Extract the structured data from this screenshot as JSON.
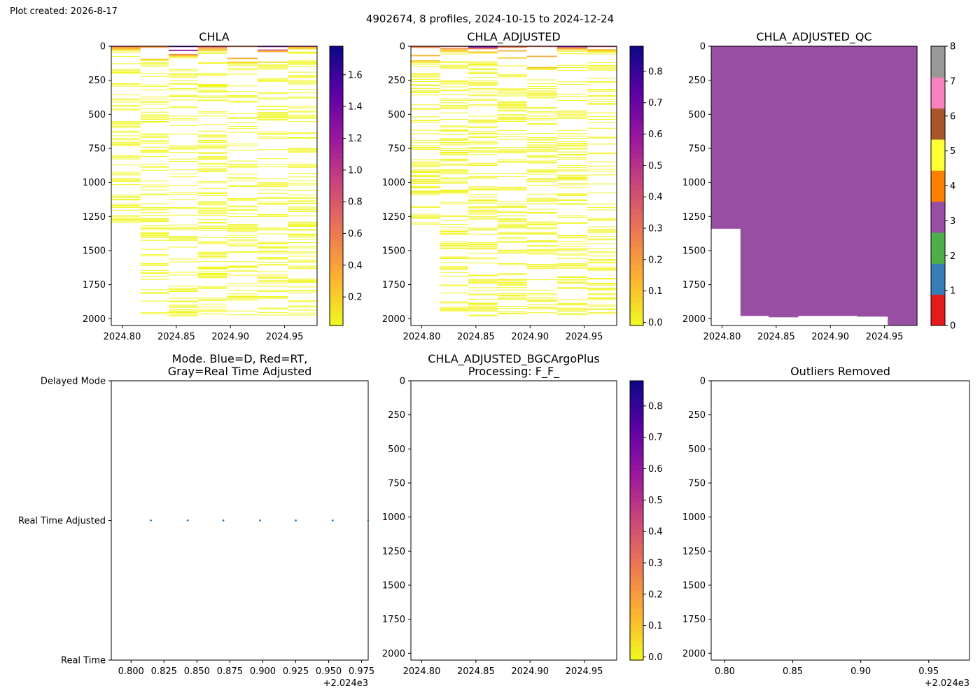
{
  "figure": {
    "created": "Plot created: 2026-8-17",
    "suptitle": "4902674, 8 profiles, 2024-10-15 to 2024-12-24"
  },
  "colors": {
    "trace_cmap": [
      "#f0f921",
      "#fdb42f",
      "#ed7953",
      "#cc4778",
      "#9c179e",
      "#5c01a6",
      "#0d0887"
    ],
    "qc_flags": [
      "#e41a1c",
      "#377eb8",
      "#4daf4a",
      "#984ea3",
      "#ff7f00",
      "#ffff33",
      "#a65628",
      "#f781bf",
      "#999999"
    ],
    "mode_point": "#1f77b4"
  },
  "chart_data": [
    {
      "id": "chla",
      "type": "heatmap",
      "title": "CHLA",
      "x": [
        2024.79,
        2024.817,
        2024.843,
        2024.87,
        2024.897,
        2024.925,
        2024.953,
        2024.98
      ],
      "xlim": [
        2024.79,
        2024.98
      ],
      "xticks": [
        "2024.80",
        "2024.85",
        "2024.90",
        "2024.95"
      ],
      "ylim": [
        2050,
        0
      ],
      "yticks": [
        "0",
        "250",
        "500",
        "750",
        "1000",
        "1250",
        "1500",
        "1750",
        "2000"
      ],
      "colorbar": {
        "range": [
          0.02,
          1.78
        ],
        "ticks": [
          "0.2",
          "0.4",
          "0.6",
          "0.8",
          "1.0",
          "1.2",
          "1.4",
          "1.6"
        ]
      },
      "profile_bottom_depth": [
        1340,
        1990,
        1990,
        1980,
        1980,
        1985,
        1985
      ],
      "surface_values": [
        [
          0.7,
          0.5,
          0.3,
          0.2
        ],
        [
          0.7,
          0.45,
          0.2,
          0.1
        ],
        [
          1.6,
          1.2,
          0.55,
          0.25
        ],
        [
          0.9,
          0.55,
          0.3,
          0.15
        ],
        [
          0.6,
          0.35,
          0.2,
          0.1
        ],
        [
          1.35,
          0.8,
          0.35,
          0.15
        ],
        [
          0.85,
          0.3,
          0.15,
          0.05
        ]
      ],
      "deep_value": 0.03
    },
    {
      "id": "chla_adjusted",
      "type": "heatmap",
      "title": "CHLA_ADJUSTED",
      "x": [
        2024.79,
        2024.817,
        2024.843,
        2024.87,
        2024.897,
        2024.925,
        2024.953,
        2024.98
      ],
      "xlim": [
        2024.79,
        2024.98
      ],
      "xticks": [
        "2024.80",
        "2024.85",
        "2024.90",
        "2024.95"
      ],
      "ylim": [
        2050,
        0
      ],
      "yticks": [
        "0",
        "250",
        "500",
        "750",
        "1000",
        "1250",
        "1500",
        "1750",
        "2000"
      ],
      "colorbar": {
        "range": [
          -0.01,
          0.88
        ],
        "ticks": [
          "0.0",
          "0.1",
          "0.2",
          "0.3",
          "0.4",
          "0.5",
          "0.6",
          "0.7",
          "0.8"
        ]
      },
      "profile_bottom_depth": [
        1340,
        1990,
        1990,
        1980,
        1980,
        1985,
        1985
      ],
      "surface_values": [
        [
          0.35,
          0.25,
          0.15,
          0.1
        ],
        [
          0.35,
          0.22,
          0.1,
          0.05
        ],
        [
          0.8,
          0.6,
          0.28,
          0.12
        ],
        [
          0.45,
          0.28,
          0.15,
          0.08
        ],
        [
          0.3,
          0.18,
          0.1,
          0.05
        ],
        [
          0.68,
          0.4,
          0.18,
          0.08
        ],
        [
          0.42,
          0.15,
          0.08,
          0.03
        ]
      ],
      "deep_value": 0.0
    },
    {
      "id": "chla_adjusted_qc",
      "type": "heatmap",
      "title": "CHLA_ADJUSTED_QC",
      "x": [
        2024.79,
        2024.817,
        2024.843,
        2024.87,
        2024.897,
        2024.925,
        2024.953,
        2024.98
      ],
      "xlim": [
        2024.79,
        2024.98
      ],
      "xticks": [
        "2024.80",
        "2024.85",
        "2024.90",
        "2024.95"
      ],
      "ylim": [
        2050,
        0
      ],
      "yticks": [
        "0",
        "250",
        "500",
        "750",
        "1000",
        "1250",
        "1500",
        "1750",
        "2000"
      ],
      "qc_value": 3,
      "profile_bottom_depth": [
        1340,
        1980,
        1990,
        1980,
        1980,
        1985,
        2050
      ],
      "colorbar": {
        "range": [
          0,
          8
        ],
        "ticks": [
          "0",
          "1",
          "2",
          "3",
          "4",
          "5",
          "6",
          "7",
          "8"
        ]
      }
    },
    {
      "id": "mode",
      "type": "scatter",
      "title": "Mode. Blue=D, Red=RT,\nGray=Real Time Adjusted",
      "x": [
        2024.815,
        2024.843,
        2024.87,
        2024.898,
        2024.925,
        2024.953,
        2024.98
      ],
      "y": [
        "Real Time Adjusted",
        "Real Time Adjusted",
        "Real Time Adjusted",
        "Real Time Adjusted",
        "Real Time Adjusted",
        "Real Time Adjusted",
        "Real Time Adjusted"
      ],
      "xlim": [
        2024.785,
        2024.98
      ],
      "xticks": [
        "0.800",
        "0.825",
        "0.850",
        "0.875",
        "0.900",
        "0.925",
        "0.950",
        "0.975"
      ],
      "xoffset_label": "+2.024e3",
      "yticks": [
        "Real Time",
        "Real Time Adjusted",
        "Delayed Mode"
      ]
    },
    {
      "id": "bgcargoplus",
      "type": "heatmap",
      "title": "CHLA_ADJUSTED_BGCArgoPlus\nProcessing: F_F_",
      "xlim": [
        2024.79,
        2024.98
      ],
      "xticks": [
        "2024.80",
        "2024.85",
        "2024.90",
        "2024.95"
      ],
      "ylim": [
        2050,
        0
      ],
      "yticks": [
        "0",
        "250",
        "500",
        "750",
        "1000",
        "1250",
        "1500",
        "1750",
        "2000"
      ],
      "colorbar": {
        "range": [
          -0.01,
          0.88
        ],
        "ticks": [
          "0.0",
          "0.1",
          "0.2",
          "0.3",
          "0.4",
          "0.5",
          "0.6",
          "0.7",
          "0.8"
        ]
      }
    },
    {
      "id": "outliers",
      "type": "scatter",
      "title": "Outliers Removed",
      "xlim": [
        2024.79,
        2024.98
      ],
      "xticks": [
        "0.80",
        "0.85",
        "0.90",
        "0.95"
      ],
      "xoffset_label": "+2.024e3",
      "ylim": [
        2050,
        0
      ],
      "yticks": [
        "0",
        "250",
        "500",
        "750",
        "1000",
        "1250",
        "1500",
        "1750",
        "2000"
      ]
    }
  ]
}
